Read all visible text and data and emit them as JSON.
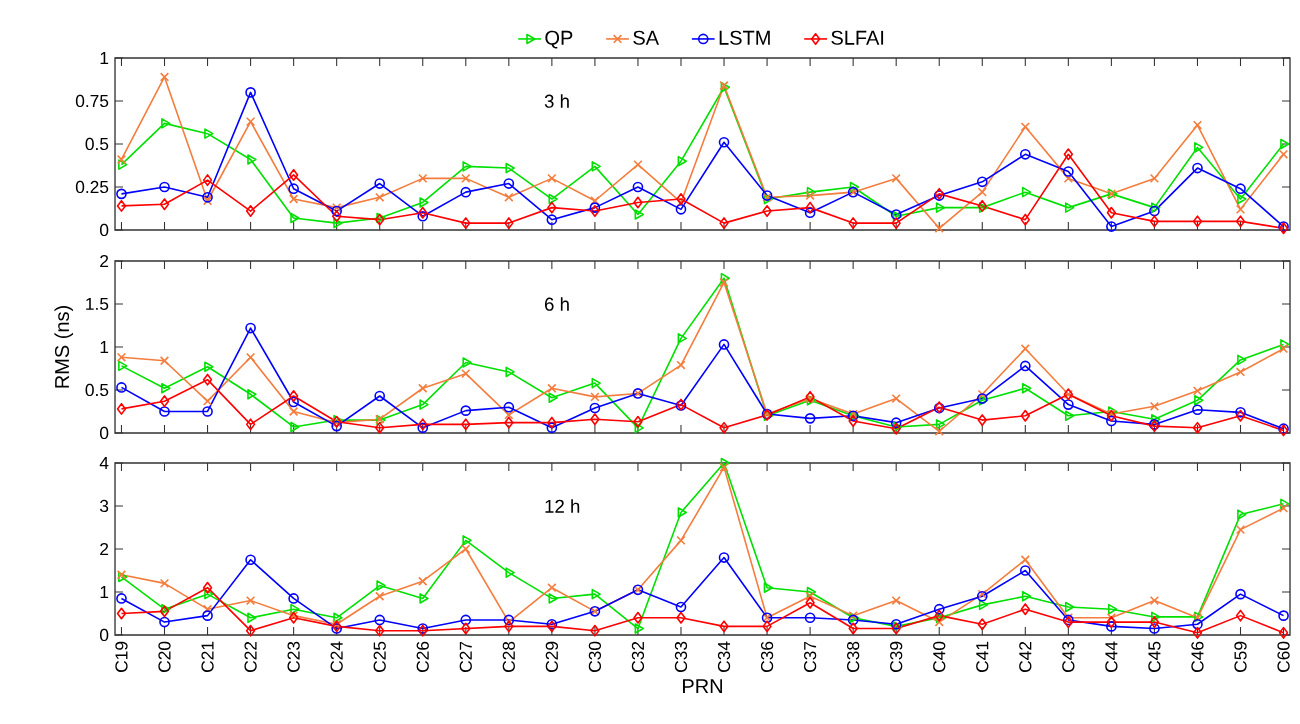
{
  "chart_data": [
    {
      "type": "line",
      "ylim": [
        0,
        1
      ],
      "yticks": [
        0,
        0.25,
        0.5,
        0.75,
        1
      ],
      "tick_labels": "y",
      "legend": "top",
      "annotations": [
        "3 h"
      ],
      "categories": [
        null,
        null,
        null,
        null,
        null,
        null,
        null,
        null,
        null,
        null,
        null,
        null,
        null,
        null,
        null,
        null,
        null,
        null,
        null,
        null,
        null,
        null,
        null,
        null,
        null,
        null,
        null,
        null
      ],
      "series": [
        {
          "name": "QP",
          "color": "#00e000",
          "marker": "triangle",
          "values": [
            0.38,
            0.62,
            0.56,
            0.41,
            0.07,
            0.04,
            0.07,
            0.16,
            0.37,
            0.36,
            0.18,
            0.37,
            0.09,
            0.4,
            0.83,
            0.18,
            0.22,
            0.25,
            0.08,
            0.13,
            0.13,
            0.22,
            0.13,
            0.21,
            0.13,
            0.48,
            0.18,
            0.5
          ]
        },
        {
          "name": "SA",
          "color": "#f47c3c",
          "marker": "cross",
          "values": [
            0.41,
            0.89,
            0.17,
            0.63,
            0.18,
            0.13,
            0.19,
            0.3,
            0.3,
            0.19,
            0.3,
            0.17,
            0.38,
            0.16,
            0.84,
            0.19,
            0.2,
            0.22,
            0.3,
            0.01,
            0.22,
            0.6,
            0.3,
            0.21,
            0.3,
            0.61,
            0.12,
            0.44
          ]
        },
        {
          "name": "LSTM",
          "color": "#0000ff",
          "marker": "circle",
          "values": [
            0.21,
            0.25,
            0.19,
            0.8,
            0.24,
            0.11,
            0.27,
            0.08,
            0.22,
            0.27,
            0.06,
            0.13,
            0.25,
            0.12,
            0.51,
            0.2,
            0.1,
            0.22,
            0.09,
            0.2,
            0.28,
            0.44,
            0.34,
            0.02,
            0.11,
            0.36,
            0.24,
            0.02
          ]
        },
        {
          "name": "SLFAI",
          "color": "#ff0000",
          "marker": "diamond",
          "values": [
            0.14,
            0.15,
            0.29,
            0.11,
            0.32,
            0.08,
            0.06,
            0.1,
            0.04,
            0.04,
            0.13,
            0.11,
            0.16,
            0.18,
            0.04,
            0.11,
            0.13,
            0.04,
            0.04,
            0.21,
            0.14,
            0.06,
            0.44,
            0.1,
            0.05,
            0.05,
            0.05,
            0.01
          ]
        }
      ]
    },
    {
      "type": "line",
      "ylim": [
        0,
        2
      ],
      "yticks": [
        0,
        0.5,
        1,
        1.5,
        2
      ],
      "tick_labels": "y",
      "ylabel": "RMS (ns)",
      "annotations": [
        "6 h"
      ],
      "categories": [
        null,
        null,
        null,
        null,
        null,
        null,
        null,
        null,
        null,
        null,
        null,
        null,
        null,
        null,
        null,
        null,
        null,
        null,
        null,
        null,
        null,
        null,
        null,
        null,
        null,
        null,
        null,
        null
      ],
      "series": [
        {
          "color": "#00e000",
          "marker": "triangle",
          "values": [
            0.78,
            0.52,
            0.77,
            0.45,
            0.07,
            0.15,
            0.15,
            0.33,
            0.82,
            0.71,
            0.41,
            0.58,
            0.06,
            1.1,
            1.8,
            0.2,
            0.38,
            0.2,
            0.07,
            0.1,
            0.38,
            0.52,
            0.2,
            0.25,
            0.16,
            0.38,
            0.85,
            1.03
          ]
        },
        {
          "color": "#f47c3c",
          "marker": "cross",
          "values": [
            0.88,
            0.84,
            0.37,
            0.88,
            0.25,
            0.12,
            0.16,
            0.52,
            0.69,
            0.21,
            0.52,
            0.42,
            0.46,
            0.79,
            1.75,
            0.22,
            0.4,
            0.22,
            0.4,
            0.02,
            0.45,
            0.98,
            0.45,
            0.22,
            0.31,
            0.49,
            0.71,
            0.98
          ]
        },
        {
          "color": "#0000ff",
          "marker": "circle",
          "values": [
            0.53,
            0.25,
            0.25,
            1.22,
            0.36,
            0.08,
            0.43,
            0.06,
            0.26,
            0.3,
            0.06,
            0.29,
            0.46,
            0.32,
            1.03,
            0.22,
            0.17,
            0.2,
            0.12,
            0.29,
            0.4,
            0.78,
            0.33,
            0.14,
            0.1,
            0.27,
            0.24,
            0.05
          ]
        },
        {
          "color": "#ff0000",
          "marker": "diamond",
          "values": [
            0.28,
            0.37,
            0.62,
            0.1,
            0.43,
            0.13,
            0.06,
            0.1,
            0.1,
            0.12,
            0.12,
            0.16,
            0.13,
            0.33,
            0.06,
            0.21,
            0.42,
            0.14,
            0.05,
            0.3,
            0.15,
            0.2,
            0.45,
            0.2,
            0.08,
            0.06,
            0.2,
            0.03
          ]
        }
      ]
    },
    {
      "type": "line",
      "ylim": [
        0,
        4
      ],
      "yticks": [
        0,
        1,
        2,
        3,
        4
      ],
      "xlabel": "PRN",
      "annotations": [
        "12 h"
      ],
      "categories": [
        "C19",
        "C20",
        "C21",
        "C22",
        "C23",
        "C24",
        "C25",
        "C26",
        "C27",
        "C28",
        "C29",
        "C30",
        "C32",
        "C33",
        "C34",
        "C36",
        "C37",
        "C38",
        "C39",
        "C40",
        "C41",
        "C42",
        "C43",
        "C44",
        "C45",
        "C46",
        "C59",
        "C60"
      ],
      "series": [
        {
          "color": "#00e000",
          "marker": "triangle",
          "values": [
            1.35,
            0.6,
            0.95,
            0.4,
            0.6,
            0.4,
            1.15,
            0.85,
            2.2,
            1.45,
            0.85,
            0.95,
            0.15,
            2.85,
            4.0,
            1.1,
            1.0,
            0.4,
            0.2,
            0.4,
            0.7,
            0.9,
            0.65,
            0.6,
            0.42,
            0.42,
            2.8,
            3.05
          ]
        },
        {
          "color": "#f47c3c",
          "marker": "cross",
          "values": [
            1.4,
            1.2,
            0.6,
            0.8,
            0.45,
            0.25,
            0.9,
            1.25,
            2.0,
            0.3,
            1.1,
            0.55,
            1.05,
            2.2,
            3.9,
            0.4,
            0.9,
            0.45,
            0.8,
            0.3,
            0.95,
            1.75,
            0.4,
            0.4,
            0.8,
            0.4,
            2.45,
            2.95
          ]
        },
        {
          "color": "#0000ff",
          "marker": "circle",
          "values": [
            0.85,
            0.3,
            0.45,
            1.75,
            0.85,
            0.15,
            0.35,
            0.15,
            0.35,
            0.35,
            0.25,
            0.55,
            1.05,
            0.65,
            1.8,
            0.4,
            0.4,
            0.35,
            0.25,
            0.6,
            0.9,
            1.5,
            0.35,
            0.2,
            0.15,
            0.25,
            0.95,
            0.45
          ]
        },
        {
          "color": "#ff0000",
          "marker": "diamond",
          "values": [
            0.5,
            0.55,
            1.1,
            0.1,
            0.4,
            0.2,
            0.1,
            0.1,
            0.15,
            0.2,
            0.2,
            0.1,
            0.4,
            0.4,
            0.2,
            0.2,
            0.75,
            0.15,
            0.15,
            0.45,
            0.25,
            0.6,
            0.3,
            0.3,
            0.3,
            0.05,
            0.45,
            0.05
          ]
        }
      ]
    }
  ]
}
